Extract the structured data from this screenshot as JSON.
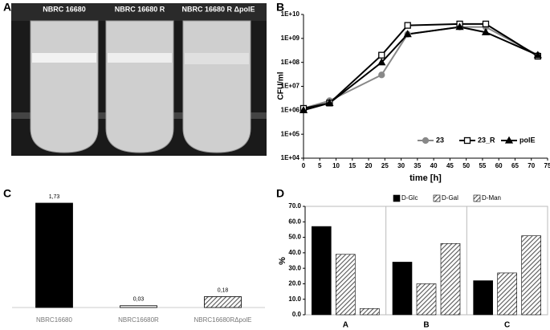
{
  "panel_letters": [
    "A",
    "B",
    "C",
    "D"
  ],
  "photo": {
    "labels": [
      "NBRC 16680",
      "NBRC 16680 R",
      "NBRC 16680 R ΔpolE"
    ]
  },
  "chart_data": [
    {
      "type": "line",
      "y_label": "CFU/ml",
      "x_label": "time [h]",
      "log_scale": true,
      "x": [
        0,
        8,
        24,
        32,
        48,
        56,
        72
      ],
      "series": [
        {
          "name": "23",
          "color": "#888888",
          "marker": "circle",
          "values": [
            1200000,
            2500000,
            30000000,
            1500000000,
            3000000000,
            3000000000,
            200000000
          ]
        },
        {
          "name": "23_R",
          "color": "#000000",
          "marker": "square",
          "values": [
            1200000,
            2000000,
            200000000,
            3500000000,
            4000000000,
            4000000000,
            180000000
          ]
        },
        {
          "name": "polE",
          "color": "#000000",
          "marker": "triangle",
          "values": [
            1000000,
            2000000,
            100000000,
            1500000000,
            3000000000,
            1800000000,
            200000000
          ]
        }
      ],
      "xlim": [
        0,
        75
      ],
      "xticks": [
        0,
        5,
        10,
        15,
        20,
        25,
        30,
        35,
        40,
        45,
        50,
        55,
        60,
        65,
        70,
        75
      ],
      "ylim": [
        10000,
        10000000000
      ],
      "yticks": [
        {
          "value": 10000,
          "label": "1E+04"
        },
        {
          "value": 100000,
          "label": "1E+05"
        },
        {
          "value": 1000000,
          "label": "1E+06"
        },
        {
          "value": 10000000,
          "label": "1E+07"
        },
        {
          "value": 100000000,
          "label": "1E+08"
        },
        {
          "value": 1000000000,
          "label": "1E+09"
        },
        {
          "value": 10000000000,
          "label": "1E+10"
        }
      ],
      "legend": "bottom-right"
    },
    {
      "type": "bar",
      "categories": [
        "NBRC16680",
        "NBRC16680R",
        "NBRC16680RΔpolE"
      ],
      "values": [
        1.73,
        0.03,
        0.18
      ],
      "value_labels": [
        "1,73",
        "0,03",
        "0,18"
      ],
      "colors": [
        "#000000",
        "#ffffff",
        "#bbbbbb"
      ]
    },
    {
      "type": "grouped-bar",
      "y_label": "%",
      "categories": [
        "A",
        "B",
        "C"
      ],
      "series": [
        {
          "name": "D-Glc",
          "color": "#000000",
          "hatch": false,
          "values": [
            57,
            34,
            22
          ]
        },
        {
          "name": "D-Gal",
          "color": "#8a8a8a",
          "hatch": true,
          "values": [
            39,
            20,
            27
          ]
        },
        {
          "name": "D-Man",
          "color": "#8a8a8a",
          "hatch": true,
          "values": [
            4,
            46,
            51
          ]
        }
      ],
      "ylim": [
        0,
        70
      ],
      "yticks": [
        {
          "value": 0,
          "label": "0.0"
        },
        {
          "value": 10,
          "label": "10.0"
        },
        {
          "value": 20,
          "label": "20.0"
        },
        {
          "value": 30,
          "label": "30.0"
        },
        {
          "value": 40,
          "label": "40.0"
        },
        {
          "value": 50,
          "label": "50.0"
        },
        {
          "value": 60,
          "label": "60.0"
        },
        {
          "value": 70,
          "label": "70.0"
        }
      ],
      "legend": "top"
    }
  ]
}
